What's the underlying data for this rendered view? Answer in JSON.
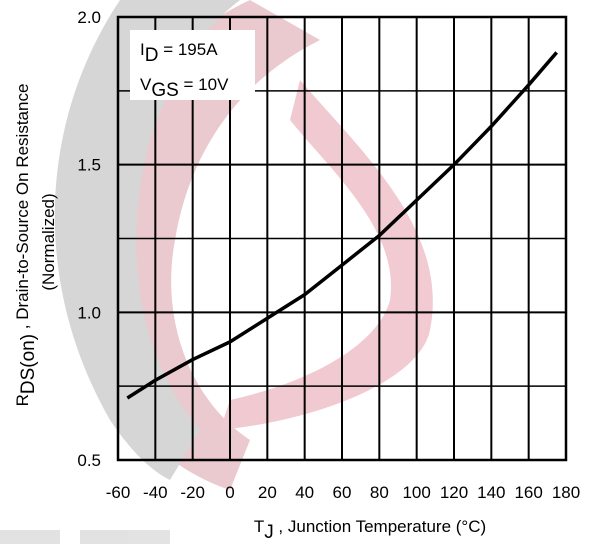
{
  "chart_data": {
    "type": "line",
    "x_label": [
      "T",
      "J",
      " , Junction Temperature (°C)"
    ],
    "y_label": [
      "R",
      "DS(on)",
      " , Drain-to-Source On Resistance"
    ],
    "y_label_line2": "(Normalized)",
    "annotations": [
      [
        "I",
        "D",
        " = 195A"
      ],
      [
        "V",
        "GS",
        " = 10V"
      ]
    ],
    "x": [
      -55,
      -40,
      -20,
      0,
      20,
      40,
      60,
      80,
      100,
      120,
      140,
      160,
      175
    ],
    "series": [
      {
        "color": "#000000",
        "values": [
          0.71,
          0.77,
          0.84,
          0.9,
          0.98,
          1.06,
          1.16,
          1.26,
          1.38,
          1.5,
          1.63,
          1.77,
          1.88
        ]
      }
    ],
    "xlim": [
      -60,
      180
    ],
    "xticks": [
      -60,
      -40,
      -20,
      0,
      20,
      40,
      60,
      80,
      100,
      120,
      140,
      160,
      180
    ],
    "ylim": [
      0.5,
      2.0
    ],
    "yticks": [
      {
        "value": 0.5,
        "label": "0.5"
      },
      {
        "value": 1.0,
        "label": "1.0"
      },
      {
        "value": 1.5,
        "label": "1.5"
      },
      {
        "value": 2.0,
        "label": "2.0"
      }
    ],
    "y_minor_grid": [
      0.75,
      1.25,
      1.75
    ],
    "grid": true
  }
}
